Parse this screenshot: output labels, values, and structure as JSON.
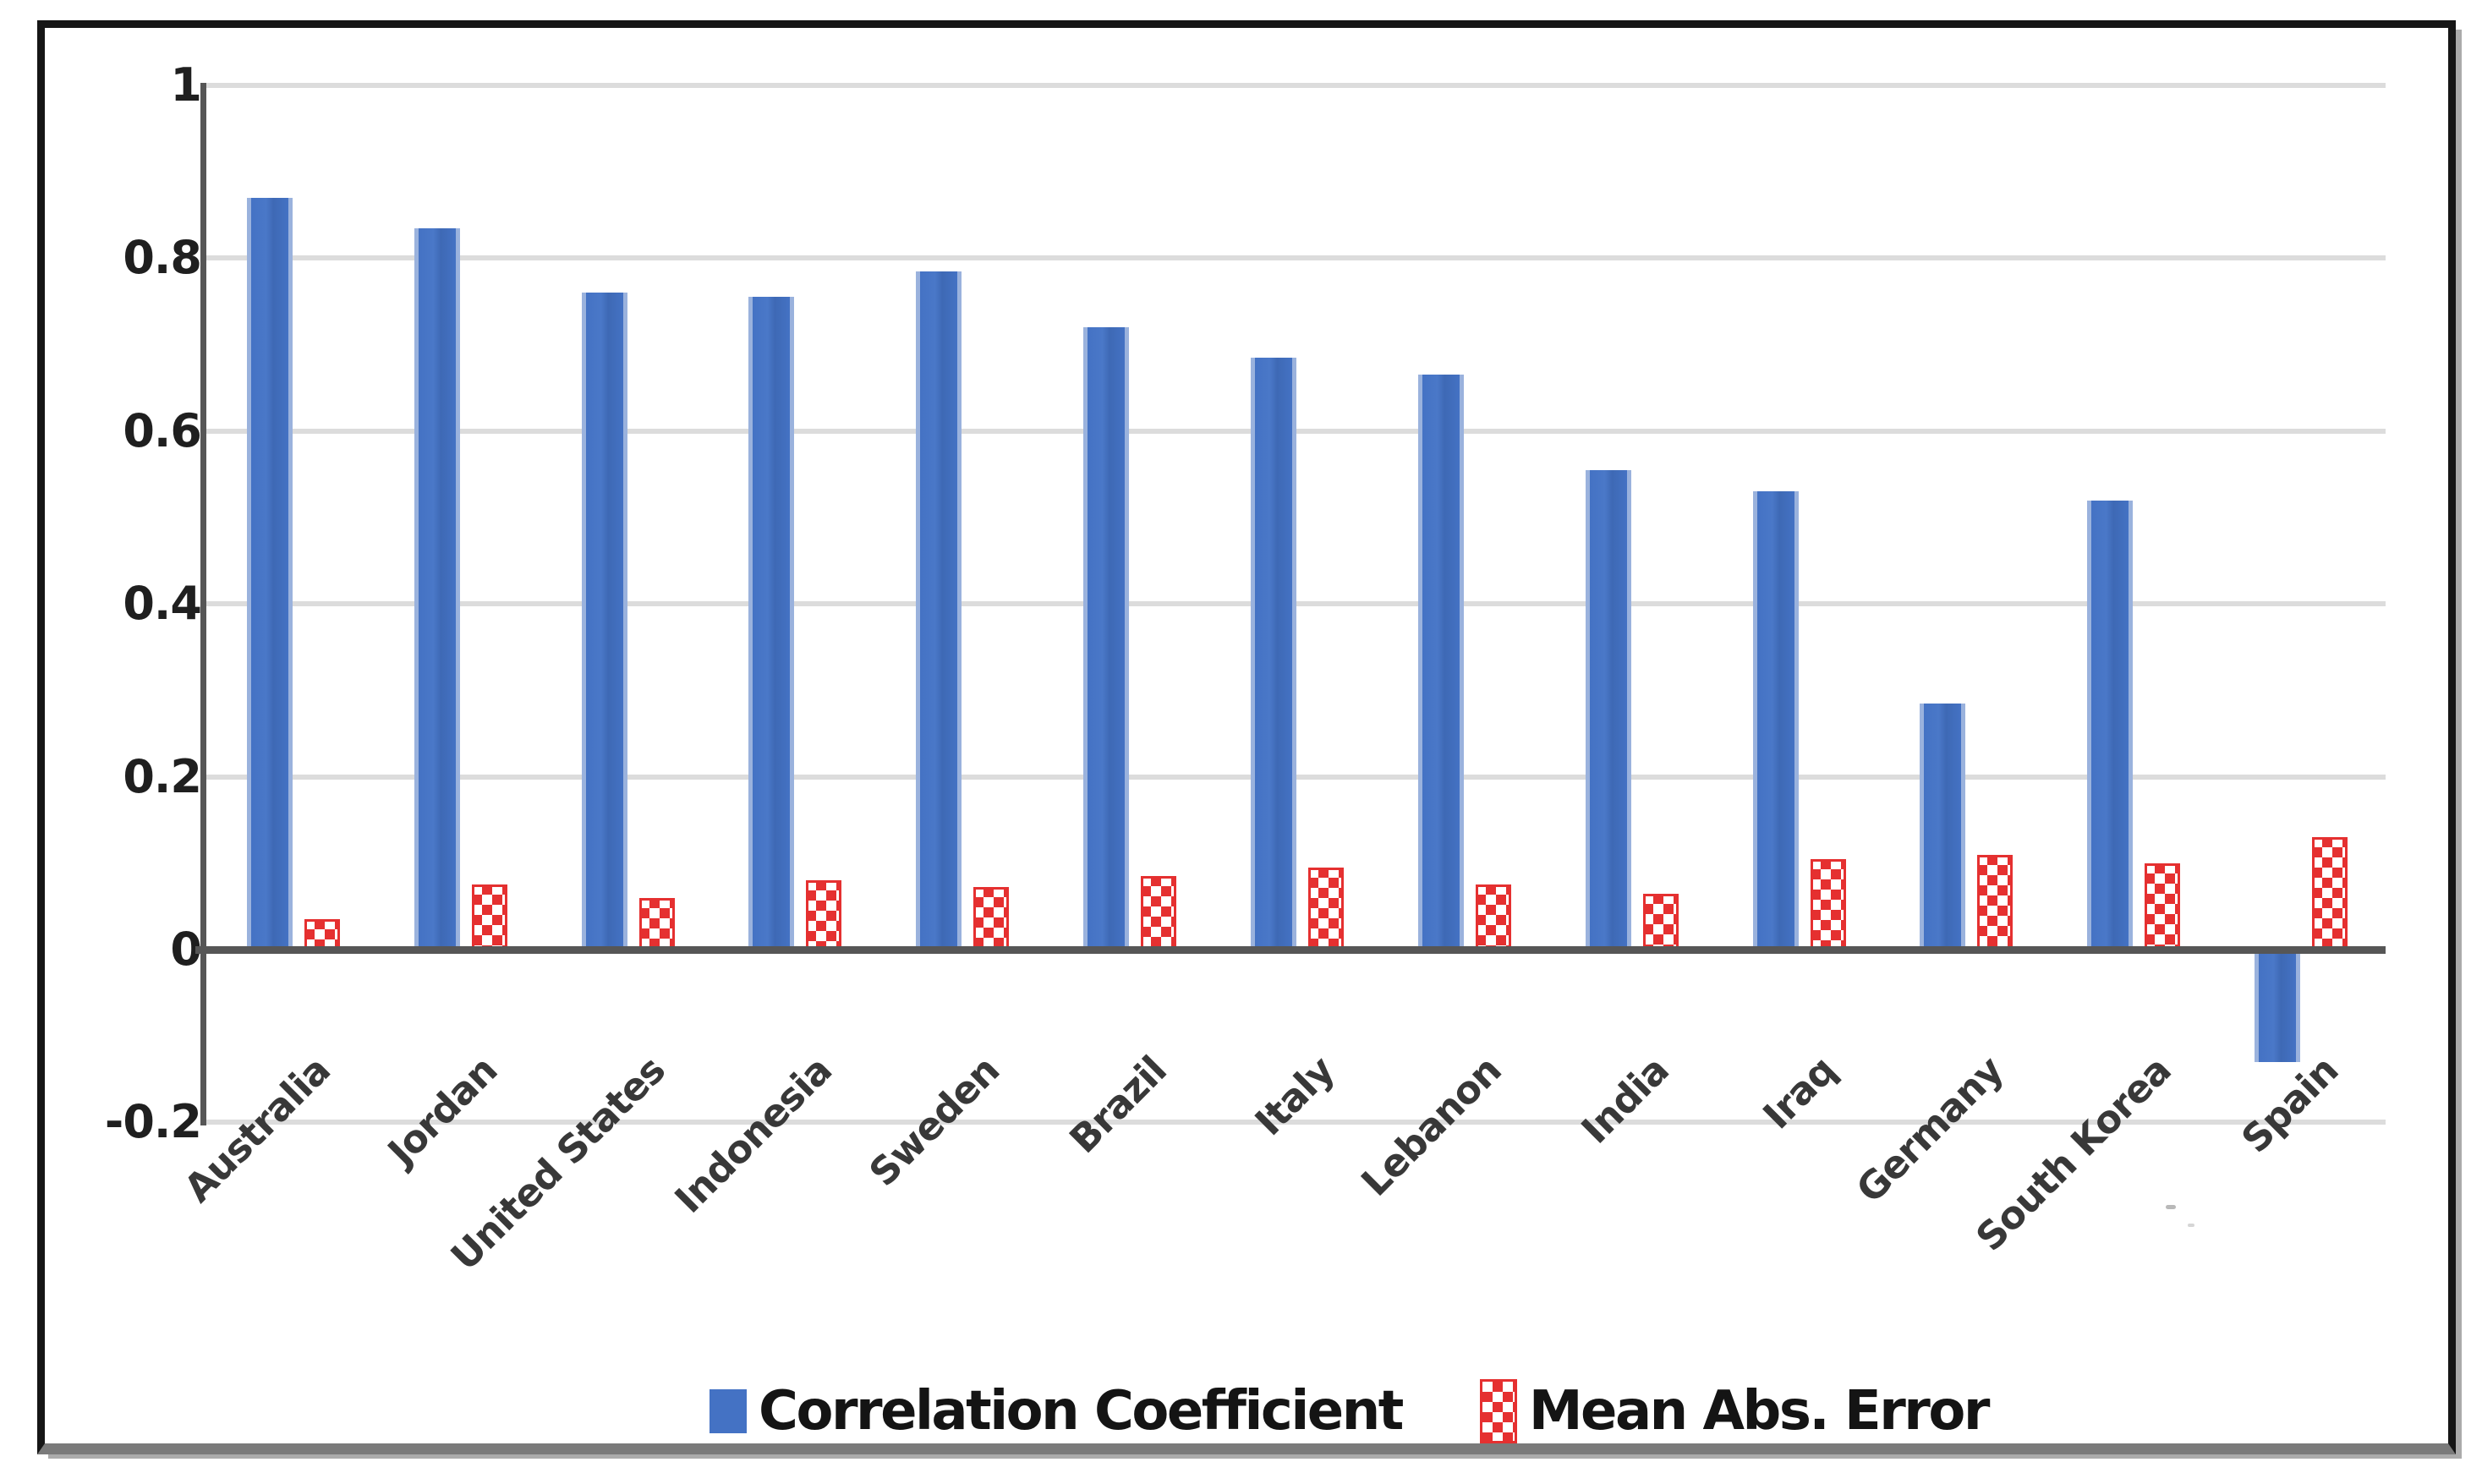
{
  "chart_data": {
    "type": "bar",
    "title": "",
    "xlabel": "",
    "ylabel": "",
    "categories": [
      "Australia",
      "Jordan",
      "United States",
      "Indonesia",
      "Sweden",
      "Brazil",
      "Italy",
      "Lebanon",
      "India",
      "Iraq",
      "Germany",
      "South Korea",
      "Spain"
    ],
    "series": [
      {
        "name": "Correlation Coefficient",
        "color": "#4472c4",
        "pattern": "solid",
        "values": [
          0.87,
          0.835,
          0.76,
          0.755,
          0.785,
          0.72,
          0.685,
          0.665,
          0.555,
          0.53,
          0.285,
          0.52,
          -0.13
        ]
      },
      {
        "name": "Mean Abs. Error",
        "color": "#e53030",
        "pattern": "checker",
        "values": [
          0.035,
          0.075,
          0.06,
          0.08,
          0.072,
          0.085,
          0.095,
          0.075,
          0.065,
          0.105,
          0.11,
          0.1,
          0.13
        ]
      }
    ],
    "ylim": [
      -0.2,
      1.0
    ],
    "yticks": [
      1,
      0.8,
      0.6,
      0.4,
      0.2,
      0,
      -0.2
    ],
    "ytick_labels": [
      "1",
      "0.8",
      "0.6",
      "0.4",
      "0.2",
      "0",
      "-0.2"
    ],
    "gridline_values": [
      1,
      0.8,
      0.6,
      0.4,
      0.2,
      -0.2
    ],
    "grid": true,
    "legend_position": "bottom",
    "category_label_rotation_deg": 45
  },
  "colors": {
    "bar_blue": "#4472c4",
    "bar_blue_edge": "#9ab2dd",
    "bar_red": "#e53030",
    "gridline": "#dcdcdc",
    "axis": "#565656",
    "tick_text": "#1f1f1f",
    "category_text": "#383838",
    "legend_text": "#141414",
    "frame_border": "#161616"
  }
}
